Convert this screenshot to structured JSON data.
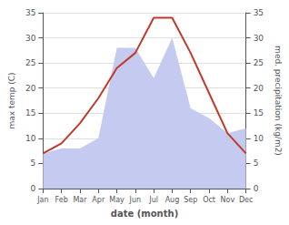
{
  "chart_data": {
    "type": "line",
    "xlabel": "date (month)",
    "ylabel": "max temp (C)",
    "y2label": "med. precipitation (kg/m2)",
    "categories": [
      "Jan",
      "Feb",
      "Mar",
      "Apr",
      "May",
      "Jun",
      "Jul",
      "Aug",
      "Sep",
      "Oct",
      "Nov",
      "Dec"
    ],
    "series": [
      {
        "type": "area",
        "axis": "y2",
        "color": "#c5caf0",
        "values": [
          7,
          8,
          8,
          10,
          28,
          28,
          22,
          30,
          16,
          14,
          11,
          12
        ]
      },
      {
        "type": "line",
        "color": "#c0392b",
        "values": [
          7,
          9,
          13,
          18,
          24,
          27,
          34,
          34,
          27,
          19,
          11,
          7
        ]
      }
    ],
    "ylim": [
      0,
      35
    ],
    "yticks": [
      0,
      5,
      10,
      15,
      20,
      25,
      30,
      35
    ],
    "y2lim": [
      0,
      35
    ],
    "y2ticks": [
      0,
      5,
      10,
      15,
      20,
      25,
      30,
      35
    ],
    "grid": true
  }
}
